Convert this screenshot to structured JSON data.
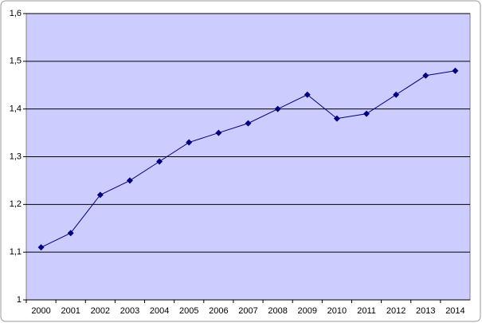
{
  "chart_data": {
    "type": "line",
    "categories": [
      "2000",
      "2001",
      "2002",
      "2003",
      "2004",
      "2005",
      "2006",
      "2007",
      "2008",
      "2009",
      "2010",
      "2011",
      "2012",
      "2013",
      "2014"
    ],
    "values": [
      1.11,
      1.14,
      1.22,
      1.25,
      1.29,
      1.33,
      1.35,
      1.37,
      1.4,
      1.43,
      1.38,
      1.39,
      1.43,
      1.47,
      1.48
    ],
    "color": "#000080",
    "ylim": [
      1,
      1.6
    ],
    "yticks": [
      1,
      {
        "value": 1.1,
        "label": "1,1"
      },
      {
        "value": 1.2,
        "label": "1,2"
      },
      {
        "value": 1.3,
        "label": "1,3"
      },
      {
        "value": 1.4,
        "label": "1,4"
      },
      {
        "value": 1.5,
        "label": "1,5"
      },
      {
        "value": 1.6,
        "label": "1,6"
      }
    ],
    "grid": true,
    "background": "#ccccff"
  }
}
